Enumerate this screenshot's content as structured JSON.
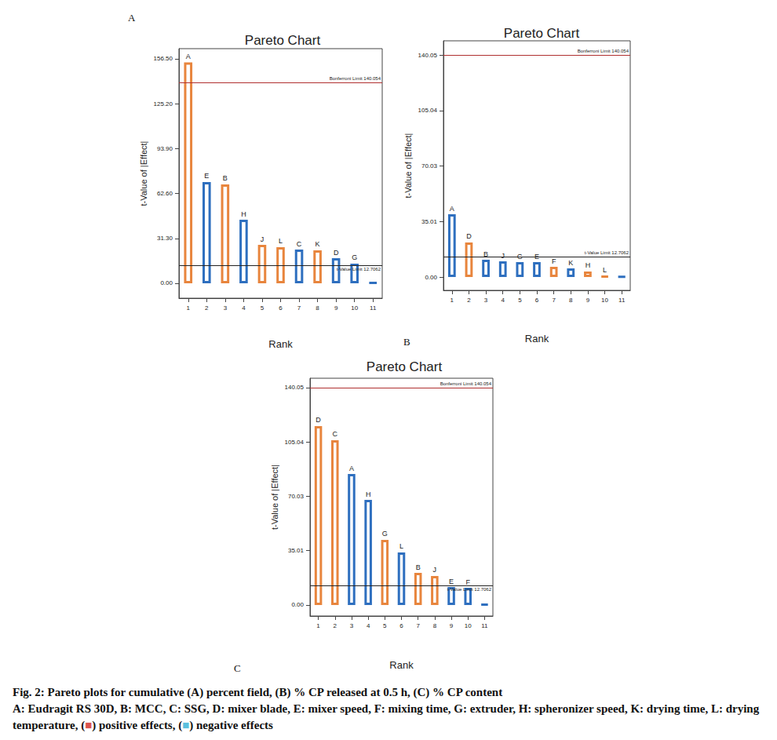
{
  "chart_data": [
    {
      "type": "bar",
      "panel": "A",
      "title": "Pareto Chart",
      "x_label": "Rank",
      "y_label": "t-Value of |Effect|",
      "categories": [
        "1",
        "2",
        "3",
        "4",
        "5",
        "6",
        "7",
        "8",
        "9",
        "10",
        "11"
      ],
      "values": [
        154.0,
        70.6,
        69.0,
        44.3,
        26.8,
        25.2,
        23.5,
        23.0,
        17.5,
        13.7,
        0.5
      ],
      "factors": [
        "A",
        "E",
        "B",
        "H",
        "J",
        "L",
        "C",
        "K",
        "D",
        "G",
        null
      ],
      "colors": [
        "#e8853d",
        "#2e6fbf",
        "#e8853d",
        "#2e6fbf",
        "#e8853d",
        "#e8853d",
        "#2e6fbf",
        "#e8853d",
        "#2e6fbf",
        "#2e6fbf",
        "#2e6fbf"
      ],
      "ylim": [
        -10.4,
        163.6
      ],
      "yticks": [
        {
          "value": 0,
          "label": "0.00"
        },
        {
          "value": 31.3,
          "label": "31.30"
        },
        {
          "value": 62.6,
          "label": "62.60"
        },
        {
          "value": 93.9,
          "label": "93.90"
        },
        {
          "value": 125.2,
          "label": "125.20"
        },
        {
          "value": 156.5,
          "label": "156.50"
        }
      ],
      "reference_lines": [
        {
          "label": "Bonferroni Limit 140.054",
          "value": 140.054,
          "color": "#b03030"
        },
        {
          "label": "t-Value Limit 12.7062",
          "value": 12.7062,
          "color": "#222222"
        }
      ]
    },
    {
      "type": "bar",
      "panel": "B",
      "title": "Pareto Chart",
      "x_label": "Rank",
      "y_label": "t-Value of |Effect|",
      "categories": [
        "1",
        "2",
        "3",
        "4",
        "5",
        "6",
        "7",
        "8",
        "9",
        "10",
        "11"
      ],
      "values": [
        39.6,
        21.8,
        10.9,
        9.9,
        9.4,
        9.4,
        6.4,
        5.4,
        3.5,
        0.5,
        0.3
      ],
      "factors": [
        "A",
        "D",
        "B",
        "J",
        "G",
        "E",
        "F",
        "K",
        "H",
        "L",
        null
      ],
      "colors": [
        "#2e6fbf",
        "#e8853d",
        "#2e6fbf",
        "#2e6fbf",
        "#2e6fbf",
        "#2e6fbf",
        "#e8853d",
        "#2e6fbf",
        "#e8853d",
        "#e8853d",
        "#2e6fbf"
      ],
      "ylim": [
        -8.4,
        149.0
      ],
      "yticks": [
        {
          "value": 0,
          "label": "0.00"
        },
        {
          "value": 35.01,
          "label": "35.01"
        },
        {
          "value": 70.03,
          "label": "70.03"
        },
        {
          "value": 105.04,
          "label": "105.04"
        },
        {
          "value": 140.05,
          "label": "140.05"
        }
      ],
      "reference_lines": [
        {
          "label": "Bonferroni Limit 140.054",
          "value": 140.054,
          "color": "#b03030"
        },
        {
          "label": "t-Value Limit 12.7062",
          "value": 12.7062,
          "color": "#222222"
        }
      ]
    },
    {
      "type": "bar",
      "panel": "C",
      "title": "Pareto Chart",
      "x_label": "Rank",
      "y_label": "t-Value of |Effect|",
      "categories": [
        "1",
        "2",
        "3",
        "4",
        "5",
        "6",
        "7",
        "8",
        "9",
        "10",
        "11"
      ],
      "values": [
        115.3,
        106.2,
        84.4,
        67.7,
        42.0,
        33.9,
        20.7,
        18.7,
        11.6,
        11.1,
        0.5
      ],
      "factors": [
        "D",
        "C",
        "A",
        "H",
        "G",
        "L",
        "B",
        "J",
        "E",
        "F",
        null
      ],
      "colors": [
        "#e8853d",
        "#e8853d",
        "#2e6fbf",
        "#2e6fbf",
        "#e8853d",
        "#2e6fbf",
        "#e8853d",
        "#e8853d",
        "#2e6fbf",
        "#2e6fbf",
        "#2e6fbf"
      ],
      "ylim": [
        -7.1,
        146.1
      ],
      "yticks": [
        {
          "value": 0,
          "label": "0.00"
        },
        {
          "value": 35.01,
          "label": "35.01"
        },
        {
          "value": 70.03,
          "label": "70.03"
        },
        {
          "value": 105.04,
          "label": "105.04"
        },
        {
          "value": 140.05,
          "label": "140.05"
        }
      ],
      "reference_lines": [
        {
          "label": "Bonferroni Limit 140.054",
          "value": 140.054,
          "color": "#b03030"
        },
        {
          "label": "t-Value Limit 12.7062",
          "value": 12.7062,
          "color": "#222222"
        }
      ]
    }
  ],
  "caption": {
    "title": "Fig. 2: Pareto plots for cumulative (A) percent field, (B) % CP released at 0.5 h, (C) % CP content",
    "segments": [
      {
        "text": "A: Eudragit RS 30D, B: MCC, C: SSG, D: mixer blade, E: mixer speed, F: mixing time, G: extruder, H: spheronizer speed, K: drying time, L: drying temperature, ("
      },
      {
        "text": "■",
        "color": "#d9534f"
      },
      {
        "text": ") positive effects, ("
      },
      {
        "text": "■",
        "color": "#5bc0de"
      },
      {
        "text": ") negative effects"
      }
    ]
  }
}
